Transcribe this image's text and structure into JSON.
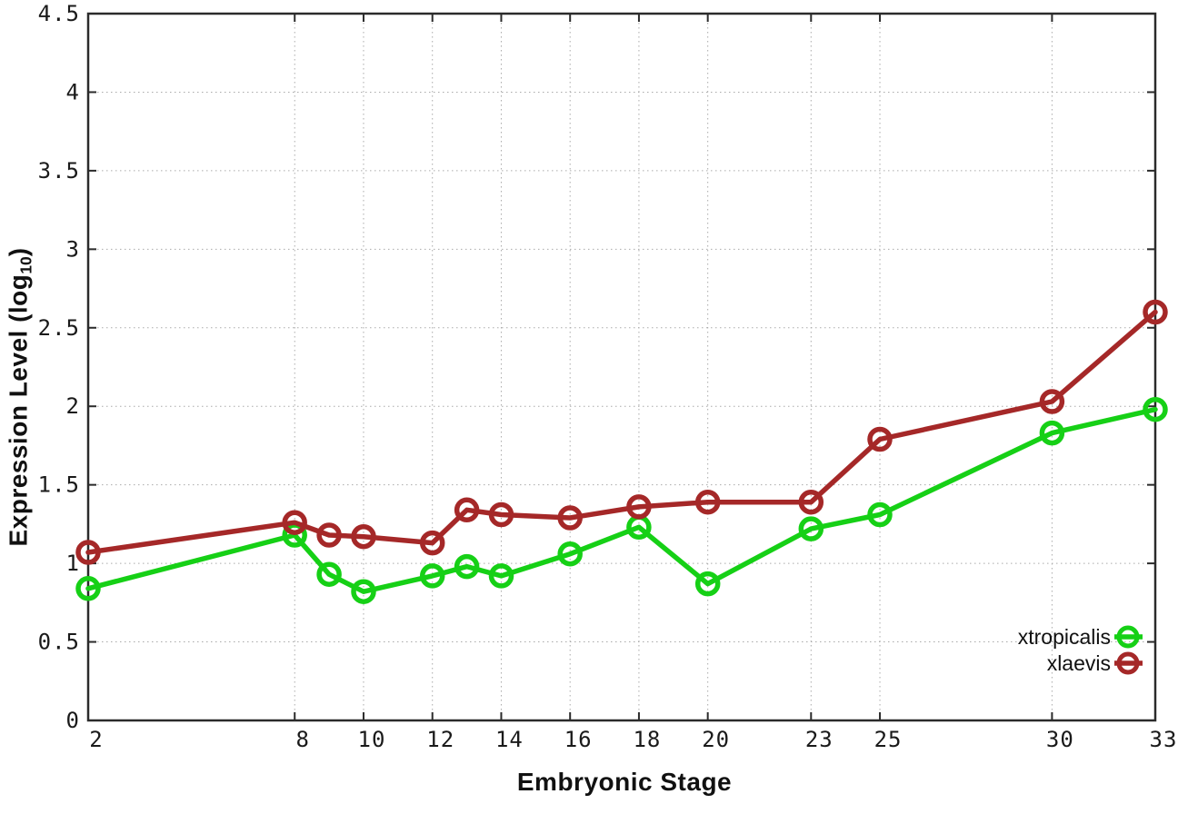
{
  "chart_data": {
    "type": "line",
    "title": "",
    "xlabel": "Embryonic Stage",
    "ylabel": "Expression Level (log10)",
    "ylabel_parts": {
      "prefix": "Expression Level (log",
      "sub": "10",
      "suffix": ")"
    },
    "xlim": [
      2,
      33
    ],
    "ylim": [
      0,
      4.5
    ],
    "grid": true,
    "x": [
      2,
      8,
      9,
      10,
      12,
      13,
      14,
      16,
      18,
      20,
      23,
      25,
      30,
      33
    ],
    "xtick_values": [
      2,
      8,
      10,
      12,
      14,
      16,
      18,
      20,
      23,
      25,
      30,
      33
    ],
    "xtick_labels": [
      "2",
      "8",
      "10",
      "12",
      "14",
      "16",
      "18",
      "20",
      "23",
      "25",
      "30",
      "33"
    ],
    "ytick_values": [
      0,
      0.5,
      1,
      1.5,
      2,
      2.5,
      3,
      3.5,
      4,
      4.5
    ],
    "ytick_labels": [
      "0",
      "0.5",
      "1",
      "1.5",
      "2",
      "2.5",
      "3",
      "3.5",
      "4",
      "4.5"
    ],
    "legend_position": "inside-bottom-right",
    "series": [
      {
        "name": "xtropicalis",
        "color": "#16d016",
        "values": [
          0.84,
          1.18,
          0.93,
          0.82,
          0.92,
          0.98,
          0.92,
          1.06,
          1.23,
          0.87,
          1.22,
          1.31,
          1.83,
          1.98
        ]
      },
      {
        "name": "xlaevis",
        "color": "#a52828",
        "values": [
          1.07,
          1.26,
          1.18,
          1.17,
          1.13,
          1.34,
          1.31,
          1.29,
          1.36,
          1.39,
          1.39,
          1.79,
          2.03,
          2.6
        ]
      }
    ]
  },
  "style_colors": {
    "border": "#2b2b2b",
    "grid": "#aaaaaa",
    "tick_text": "#1a1a1a"
  }
}
